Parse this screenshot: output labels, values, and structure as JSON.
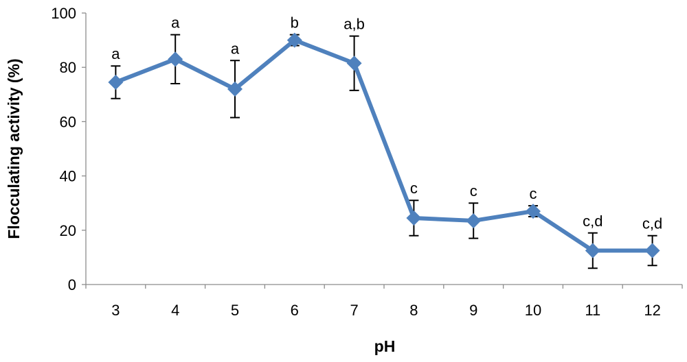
{
  "chart_data": {
    "type": "line",
    "xlabel": "pH",
    "ylabel": "Flocculating activity (%)",
    "ylim": [
      0,
      100
    ],
    "yticks": [
      0,
      20,
      40,
      60,
      80,
      100
    ],
    "categories": [
      "3",
      "4",
      "5",
      "6",
      "7",
      "8",
      "9",
      "10",
      "11",
      "12"
    ],
    "series": [
      {
        "values": [
          74.5,
          83,
          72,
          90,
          81.5,
          24.5,
          23.5,
          27,
          12.5,
          12.5
        ],
        "error": [
          6,
          9,
          10.5,
          2,
          10,
          6.5,
          6.5,
          2,
          6.5,
          5.5
        ],
        "significance": [
          "a",
          "a",
          "a",
          "b",
          "a,b",
          "c",
          "c",
          "c",
          "c,d",
          "c,d"
        ],
        "color": "#4f81bd"
      }
    ],
    "grid": false,
    "legend": "none"
  }
}
